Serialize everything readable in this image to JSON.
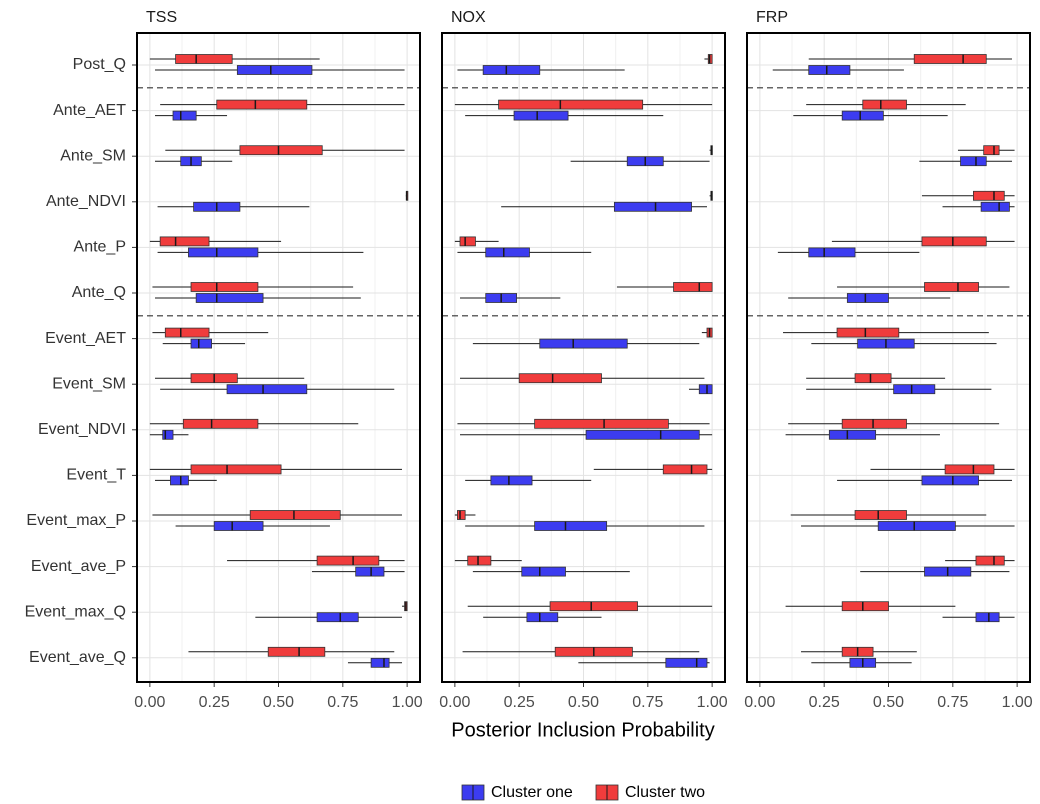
{
  "x_label": "Posterior Inclusion Probability",
  "chart_data": [
    {
      "type": "boxplot",
      "title": "TSS",
      "categories": [
        "Post_Q",
        "Ante_AET",
        "Ante_SM",
        "Ante_NDVI",
        "Ante_P",
        "Ante_Q",
        "Event_AET",
        "Event_SM",
        "Event_NDVI",
        "Event_T",
        "Event_max_P",
        "Event_ave_P",
        "Event_max_Q",
        "Event_ave_Q"
      ],
      "xlim": [
        -0.05,
        1.05
      ],
      "xticks": [
        {
          "value": 0,
          "label": "0.00"
        },
        0.25,
        {
          "value": 0.5,
          "label": "0.50"
        },
        0.75,
        {
          "value": 1,
          "label": "1.00"
        }
      ],
      "grid": true,
      "series": [
        {
          "name": "Cluster two",
          "color": "#f03c3c",
          "values": [
            [
              0.0,
              0.1,
              0.18,
              0.32,
              0.66
            ],
            [
              0.04,
              0.26,
              0.41,
              0.61,
              0.99
            ],
            [
              0.06,
              0.35,
              0.5,
              0.67,
              0.99
            ],
            [
              0.995,
              0.997,
              0.998,
              1.0,
              1.0
            ],
            [
              0.0,
              0.04,
              0.1,
              0.23,
              0.51
            ],
            [
              0.01,
              0.16,
              0.26,
              0.42,
              0.79
            ],
            [
              0.01,
              0.06,
              0.12,
              0.23,
              0.46
            ],
            [
              0.02,
              0.16,
              0.25,
              0.34,
              0.6
            ],
            [
              0.0,
              0.13,
              0.24,
              0.42,
              0.81
            ],
            [
              0.0,
              0.16,
              0.3,
              0.51,
              0.98
            ],
            [
              0.01,
              0.39,
              0.56,
              0.74,
              0.98
            ],
            [
              0.3,
              0.65,
              0.79,
              0.89,
              0.99
            ],
            [
              0.98,
              0.99,
              0.995,
              1.0,
              1.0
            ],
            [
              0.15,
              0.46,
              0.58,
              0.68,
              0.95
            ]
          ]
        },
        {
          "name": "Cluster one",
          "color": "#3c3cf0",
          "values": [
            [
              0.02,
              0.34,
              0.47,
              0.63,
              0.99
            ],
            [
              0.02,
              0.09,
              0.12,
              0.18,
              0.3
            ],
            [
              0.02,
              0.12,
              0.16,
              0.2,
              0.32
            ],
            [
              0.03,
              0.17,
              0.26,
              0.35,
              0.62
            ],
            [
              0.03,
              0.15,
              0.26,
              0.42,
              0.83
            ],
            [
              0.02,
              0.18,
              0.26,
              0.44,
              0.82
            ],
            [
              0.05,
              0.16,
              0.19,
              0.24,
              0.37
            ],
            [
              0.04,
              0.3,
              0.44,
              0.61,
              0.95
            ],
            [
              0.0,
              0.05,
              0.06,
              0.09,
              0.15
            ],
            [
              0.02,
              0.08,
              0.12,
              0.15,
              0.26
            ],
            [
              0.1,
              0.25,
              0.32,
              0.44,
              0.7
            ],
            [
              0.63,
              0.8,
              0.86,
              0.91,
              0.99
            ],
            [
              0.41,
              0.65,
              0.74,
              0.81,
              0.98
            ],
            [
              0.77,
              0.86,
              0.91,
              0.93,
              0.98
            ]
          ]
        }
      ]
    },
    {
      "type": "boxplot",
      "title": "NOX",
      "categories": [
        "Post_Q",
        "Ante_AET",
        "Ante_SM",
        "Ante_NDVI",
        "Ante_P",
        "Ante_Q",
        "Event_AET",
        "Event_SM",
        "Event_NDVI",
        "Event_T",
        "Event_max_P",
        "Event_ave_P",
        "Event_max_Q",
        "Event_ave_Q"
      ],
      "xlim": [
        -0.05,
        1.05
      ],
      "xticks": [
        {
          "value": 0,
          "label": "0.00"
        },
        0.25,
        {
          "value": 0.5,
          "label": "0.50"
        },
        0.75,
        {
          "value": 1,
          "label": "1.00"
        }
      ],
      "grid": true,
      "series": [
        {
          "name": "Cluster two",
          "color": "#f03c3c",
          "values": [
            [
              0.97,
              0.985,
              0.99,
              1.0,
              1.0
            ],
            [
              0.0,
              0.17,
              0.41,
              0.73,
              1.0
            ],
            [
              0.99,
              0.995,
              0.998,
              1.0,
              1.0
            ],
            [
              0.99,
              0.995,
              0.998,
              1.0,
              1.0
            ],
            [
              0.0,
              0.02,
              0.04,
              0.08,
              0.17
            ],
            [
              0.63,
              0.85,
              0.95,
              1.0,
              1.0
            ],
            [
              0.96,
              0.98,
              0.99,
              1.0,
              1.0
            ],
            [
              0.02,
              0.25,
              0.38,
              0.57,
              0.97
            ],
            [
              0.01,
              0.31,
              0.58,
              0.83,
              0.99
            ],
            [
              0.54,
              0.81,
              0.92,
              0.98,
              1.0
            ],
            [
              0.0,
              0.01,
              0.02,
              0.04,
              0.08
            ],
            [
              0.0,
              0.05,
              0.09,
              0.14,
              0.26
            ],
            [
              0.05,
              0.37,
              0.53,
              0.71,
              1.0
            ],
            [
              0.03,
              0.39,
              0.54,
              0.69,
              0.95
            ]
          ]
        },
        {
          "name": "Cluster one",
          "color": "#3c3cf0",
          "values": [
            [
              0.01,
              0.11,
              0.2,
              0.33,
              0.66
            ],
            [
              0.04,
              0.23,
              0.32,
              0.44,
              0.81
            ],
            [
              0.45,
              0.67,
              0.74,
              0.81,
              0.99
            ],
            [
              0.18,
              0.62,
              0.78,
              0.92,
              0.98
            ],
            [
              0.01,
              0.12,
              0.19,
              0.29,
              0.53
            ],
            [
              0.02,
              0.12,
              0.18,
              0.24,
              0.41
            ],
            [
              0.07,
              0.33,
              0.46,
              0.67,
              0.95
            ],
            [
              0.91,
              0.95,
              0.98,
              1.0,
              1.0
            ],
            [
              0.02,
              0.51,
              0.8,
              0.95,
              1.0
            ],
            [
              0.04,
              0.14,
              0.21,
              0.3,
              0.53
            ],
            [
              0.04,
              0.31,
              0.43,
              0.59,
              0.97
            ],
            [
              0.07,
              0.26,
              0.33,
              0.43,
              0.68
            ],
            [
              0.11,
              0.28,
              0.33,
              0.4,
              0.57
            ],
            [
              0.48,
              0.82,
              0.94,
              0.98,
              0.99
            ]
          ]
        }
      ]
    },
    {
      "type": "boxplot",
      "title": "FRP",
      "categories": [
        "Post_Q",
        "Ante_AET",
        "Ante_SM",
        "Ante_NDVI",
        "Ante_P",
        "Ante_Q",
        "Event_AET",
        "Event_SM",
        "Event_NDVI",
        "Event_T",
        "Event_max_P",
        "Event_ave_P",
        "Event_max_Q",
        "Event_ave_Q"
      ],
      "xlim": [
        -0.05,
        1.05
      ],
      "xticks": [
        {
          "value": 0,
          "label": "0.00"
        },
        0.25,
        {
          "value": 0.5,
          "label": "0.50"
        },
        0.75,
        {
          "value": 1,
          "label": "1.00"
        }
      ],
      "grid": true,
      "series": [
        {
          "name": "Cluster two",
          "color": "#f03c3c",
          "values": [
            [
              0.19,
              0.6,
              0.79,
              0.88,
              0.98
            ],
            [
              0.18,
              0.4,
              0.47,
              0.57,
              0.8
            ],
            [
              0.77,
              0.87,
              0.91,
              0.93,
              0.99
            ],
            [
              0.63,
              0.83,
              0.91,
              0.95,
              0.99
            ],
            [
              0.28,
              0.63,
              0.75,
              0.88,
              0.99
            ],
            [
              0.3,
              0.64,
              0.77,
              0.85,
              0.97
            ],
            [
              0.09,
              0.3,
              0.41,
              0.54,
              0.89
            ],
            [
              0.18,
              0.37,
              0.43,
              0.51,
              0.72
            ],
            [
              0.11,
              0.32,
              0.44,
              0.57,
              0.93
            ],
            [
              0.43,
              0.72,
              0.83,
              0.91,
              0.99
            ],
            [
              0.12,
              0.37,
              0.46,
              0.57,
              0.88
            ],
            [
              0.72,
              0.84,
              0.91,
              0.95,
              0.99
            ],
            [
              0.1,
              0.32,
              0.4,
              0.5,
              0.76
            ],
            [
              0.16,
              0.32,
              0.38,
              0.44,
              0.61
            ]
          ]
        },
        {
          "name": "Cluster one",
          "color": "#3c3cf0",
          "values": [
            [
              0.05,
              0.19,
              0.26,
              0.35,
              0.56
            ],
            [
              0.13,
              0.32,
              0.39,
              0.48,
              0.73
            ],
            [
              0.62,
              0.78,
              0.84,
              0.88,
              0.98
            ],
            [
              0.71,
              0.86,
              0.93,
              0.97,
              0.99
            ],
            [
              0.07,
              0.19,
              0.25,
              0.37,
              0.62
            ],
            [
              0.11,
              0.34,
              0.41,
              0.5,
              0.74
            ],
            [
              0.2,
              0.38,
              0.49,
              0.6,
              0.92
            ],
            [
              0.18,
              0.52,
              0.59,
              0.68,
              0.9
            ],
            [
              0.1,
              0.27,
              0.34,
              0.45,
              0.7
            ],
            [
              0.3,
              0.63,
              0.75,
              0.85,
              0.98
            ],
            [
              0.16,
              0.46,
              0.6,
              0.76,
              0.99
            ],
            [
              0.39,
              0.64,
              0.73,
              0.82,
              0.97
            ],
            [
              0.71,
              0.84,
              0.89,
              0.93,
              0.99
            ],
            [
              0.2,
              0.35,
              0.4,
              0.45,
              0.59
            ]
          ]
        }
      ]
    }
  ]
}
